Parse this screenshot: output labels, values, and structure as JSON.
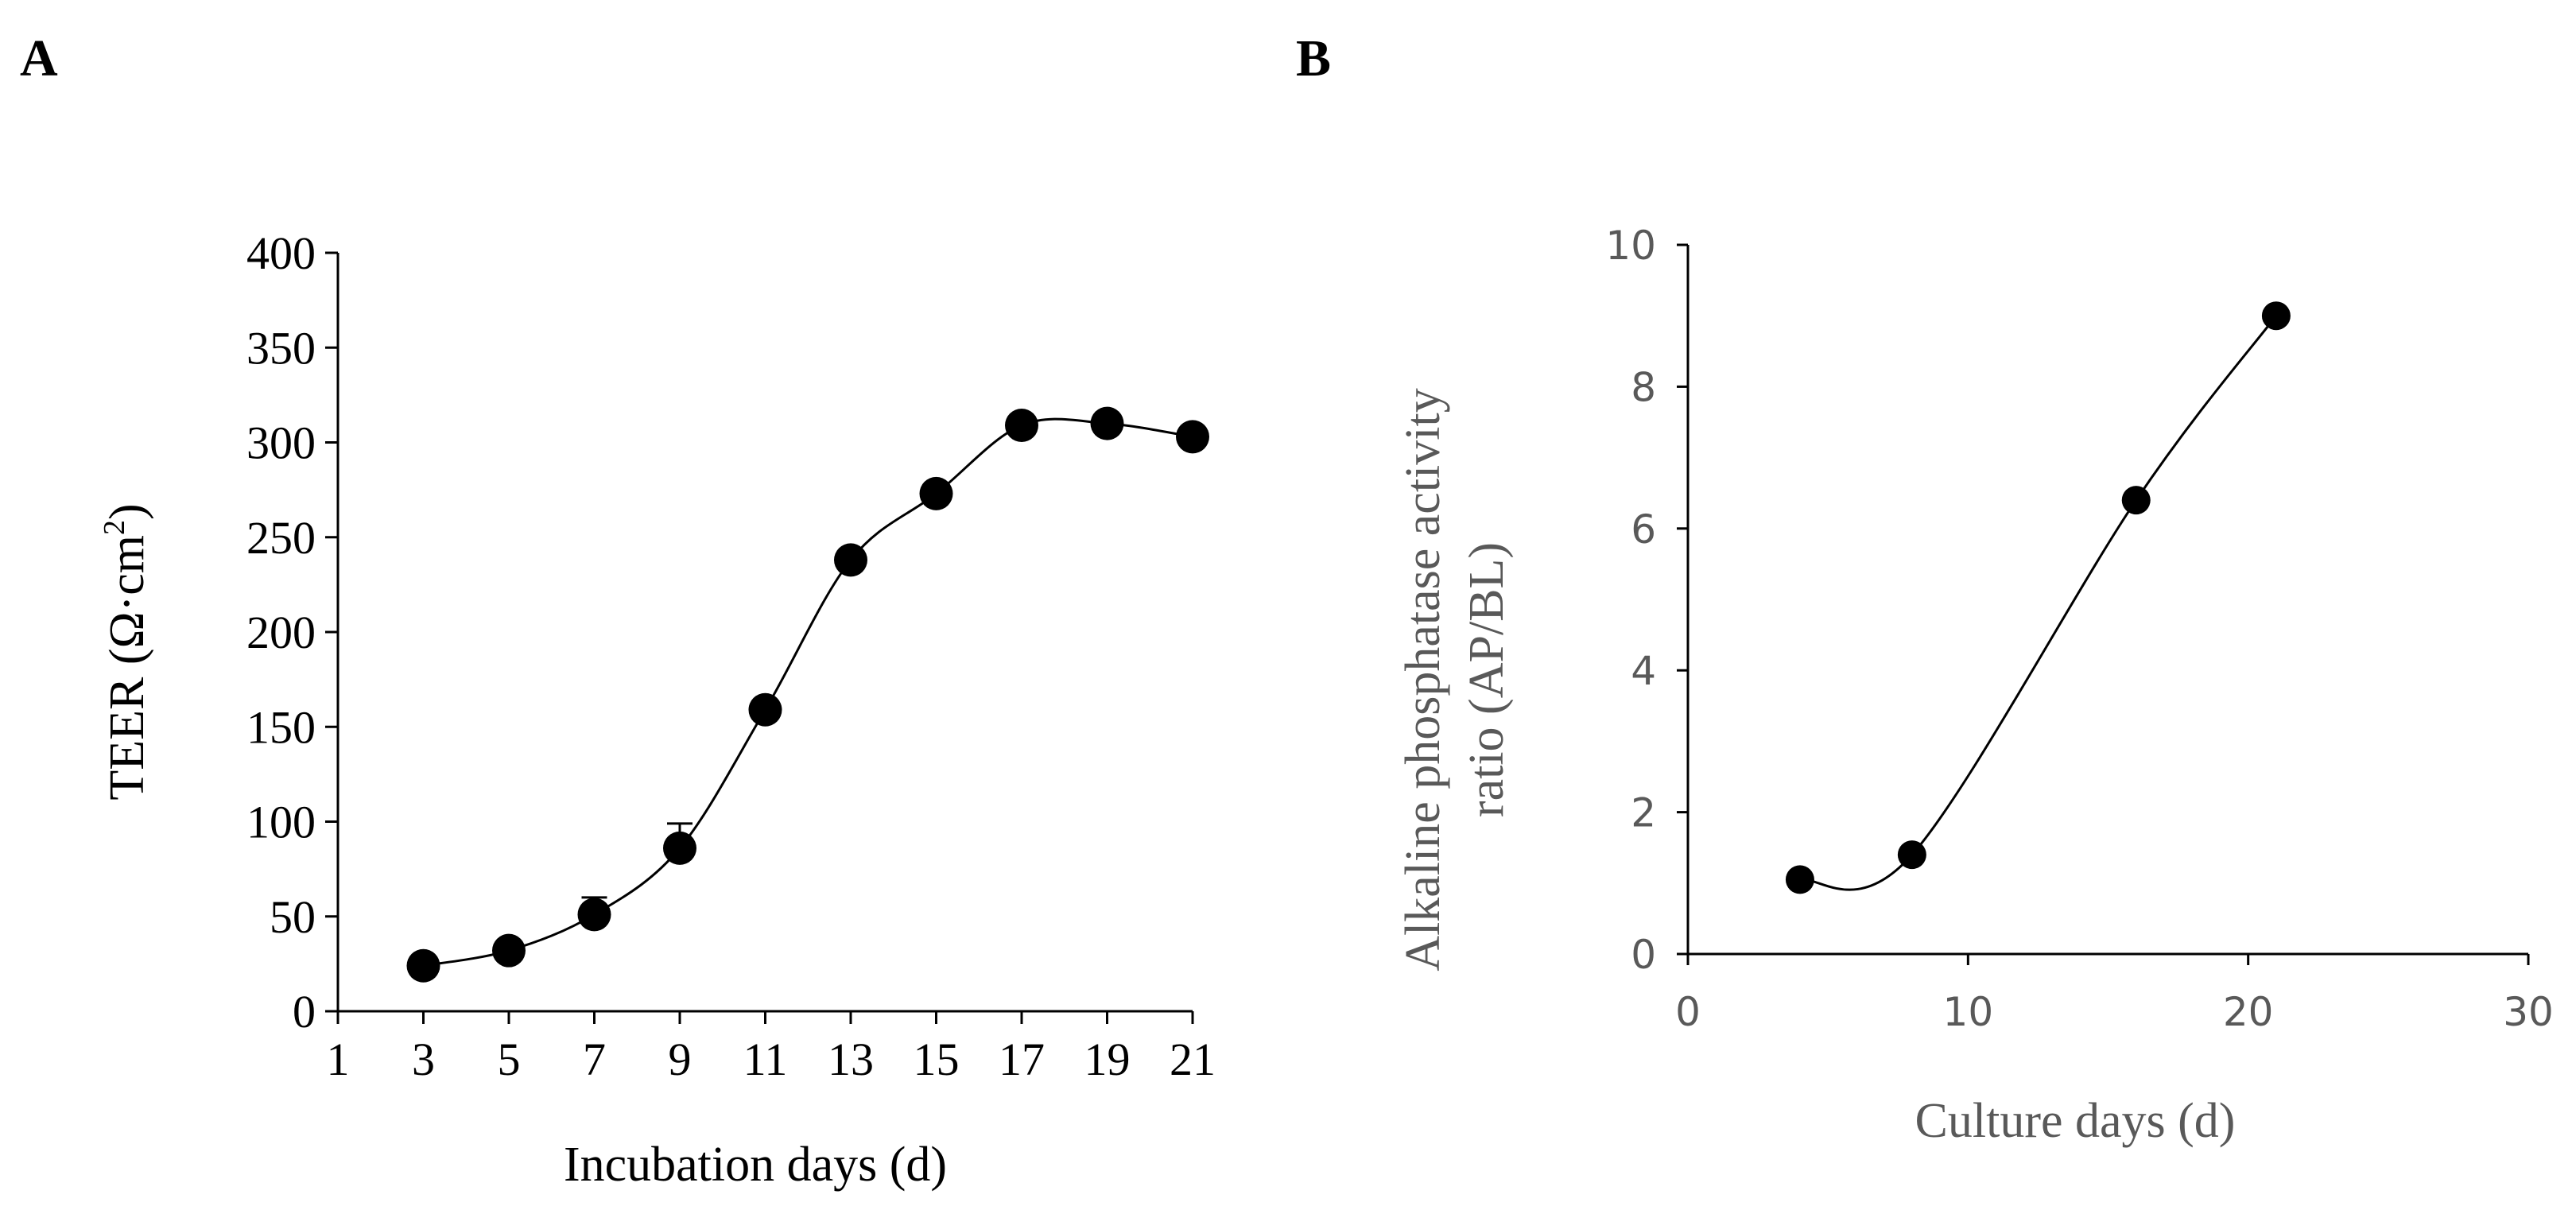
{
  "chart_data": [
    {
      "panel": "A",
      "type": "line",
      "title": "",
      "xlabel": "Incubation days (d)",
      "ylabel": "TEER (Ω·cm²)",
      "ylabel_main": "TEER (Ω·cm",
      "ylabel_sup": "2",
      "ylabel_end": ")",
      "xlim": [
        1,
        21
      ],
      "ylim": [
        0,
        400
      ],
      "xticks": [
        "1",
        "3",
        "5",
        "7",
        "9",
        "11",
        "13",
        "15",
        "17",
        "19",
        "21"
      ],
      "yticks": [
        "0",
        "50",
        "100",
        "150",
        "200",
        "250",
        "300",
        "350",
        "400"
      ],
      "x": [
        3,
        5,
        7,
        9,
        11,
        13,
        15,
        17,
        19,
        21
      ],
      "y": [
        24,
        32,
        51,
        86,
        159,
        238,
        273,
        309,
        310,
        303
      ],
      "error": [
        3,
        4,
        9,
        13,
        5,
        5,
        5,
        5,
        4,
        4
      ],
      "grid": false,
      "legend": "none"
    },
    {
      "panel": "B",
      "type": "line",
      "title": "",
      "xlabel": "Culture days (d)",
      "ylabel_line1": "Alkaline  phosphatase activity",
      "ylabel_line2": "ratio (AP/BL)",
      "xlim": [
        0,
        30
      ],
      "ylim": [
        0,
        10
      ],
      "xticks": [
        "0",
        "10",
        "20",
        "30"
      ],
      "yticks": [
        "0",
        "2",
        "4",
        "6",
        "8",
        "10"
      ],
      "x": [
        4,
        8,
        16,
        21
      ],
      "y": [
        1.05,
        1.4,
        6.4,
        9.0
      ],
      "grid": false,
      "legend": "none"
    }
  ],
  "panels": [
    "A",
    "B"
  ],
  "colors": {
    "axisA": "#000000",
    "axisB": "#595959",
    "marker": "#000000",
    "line": "#000000"
  }
}
